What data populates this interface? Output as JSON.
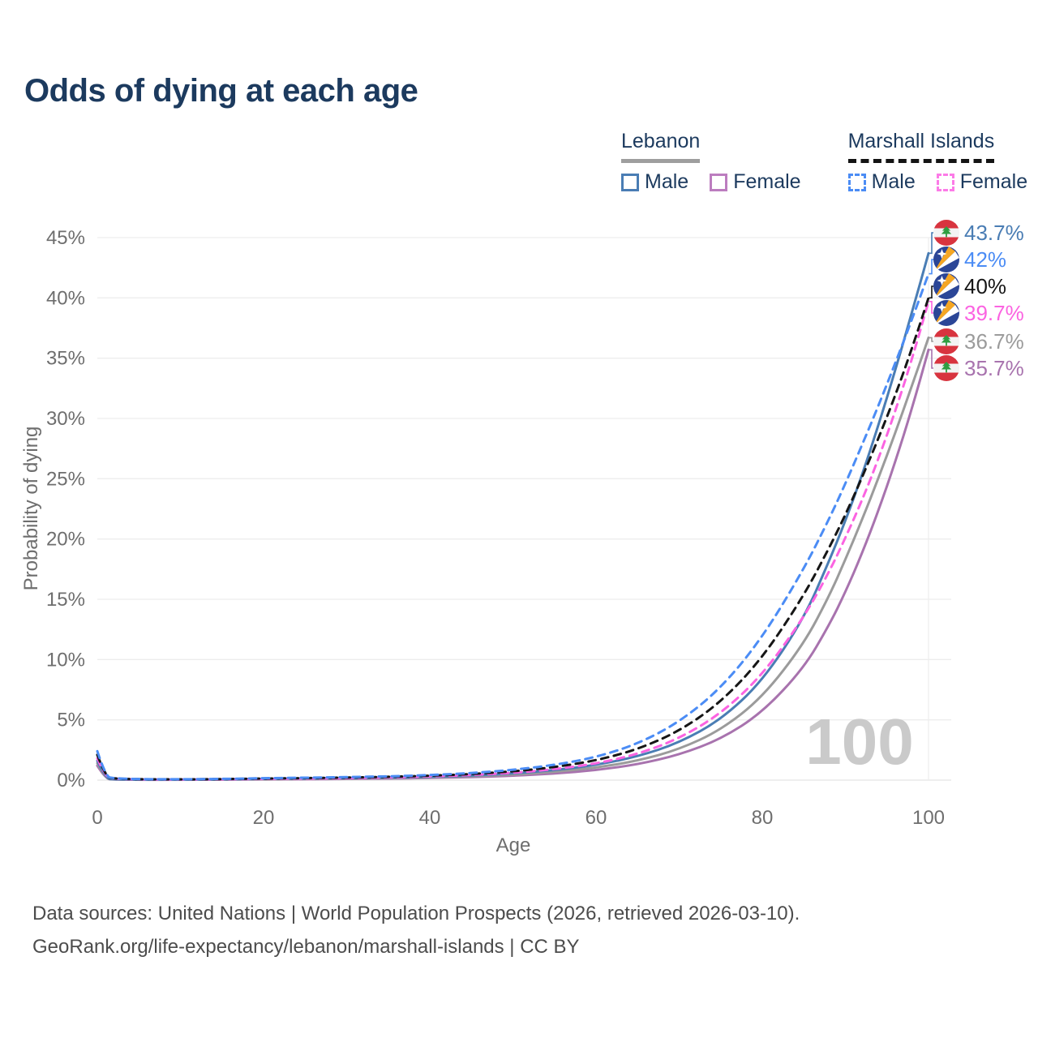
{
  "chart_data": {
    "type": "line",
    "title": "Odds of dying at each age",
    "xlabel": "Age",
    "ylabel": "Probability of dying",
    "xlim": [
      0,
      100
    ],
    "ylim": [
      0,
      45
    ],
    "x_ticks": [
      0,
      20,
      40,
      60,
      80,
      100
    ],
    "y_ticks": [
      0,
      5,
      10,
      15,
      20,
      25,
      30,
      35,
      40,
      45
    ],
    "y_tick_suffix": "%",
    "grid": "horizontal",
    "watermark": "100",
    "ages": [
      0,
      1,
      2,
      5,
      10,
      15,
      20,
      25,
      30,
      35,
      40,
      45,
      50,
      55,
      60,
      65,
      70,
      75,
      80,
      85,
      88,
      90,
      92,
      94,
      96,
      98,
      100
    ],
    "series": [
      {
        "id": "lb_male",
        "country": "Lebanon",
        "name": "Male",
        "style": "solid",
        "color": "#4a7db4",
        "flag": "lebanon",
        "end_label": "43.7%",
        "end_value": 43.7,
        "values": [
          1.6,
          0.12,
          0.07,
          0.04,
          0.04,
          0.06,
          0.1,
          0.13,
          0.16,
          0.2,
          0.27,
          0.38,
          0.55,
          0.82,
          1.25,
          1.95,
          3.1,
          5.0,
          8.2,
          13.4,
          18.1,
          21.5,
          25.3,
          29.5,
          34.0,
          38.8,
          43.7
        ]
      },
      {
        "id": "mi_male",
        "country": "Marshall Islands",
        "name": "Male",
        "style": "dashed",
        "color": "#4b8cf5",
        "flag": "marshall-islands",
        "end_label": "42%",
        "end_value": 42,
        "values": [
          2.4,
          0.3,
          0.15,
          0.08,
          0.07,
          0.1,
          0.16,
          0.2,
          0.25,
          0.31,
          0.42,
          0.58,
          0.85,
          1.25,
          1.9,
          3.0,
          4.8,
          7.6,
          11.8,
          17.5,
          21.6,
          24.6,
          27.8,
          31.1,
          34.6,
          38.2,
          42.0
        ]
      },
      {
        "id": "mi_all",
        "country": "Marshall Islands",
        "name": "All",
        "style": "dashed",
        "color": "#161616",
        "flag": "marshall-islands",
        "end_label": "40%",
        "end_value": 40,
        "values": [
          2.1,
          0.27,
          0.13,
          0.07,
          0.06,
          0.09,
          0.13,
          0.17,
          0.21,
          0.27,
          0.36,
          0.5,
          0.72,
          1.07,
          1.62,
          2.55,
          4.05,
          6.45,
          10.1,
          15.3,
          19.2,
          22.0,
          25.1,
          28.4,
          31.9,
          35.8,
          40.0
        ]
      },
      {
        "id": "mi_female",
        "country": "Marshall Islands",
        "name": "Female",
        "style": "dashed",
        "color": "#fb63e1",
        "flag": "marshall-islands",
        "end_label": "39.7%",
        "end_value": 39.7,
        "values": [
          1.8,
          0.24,
          0.12,
          0.06,
          0.05,
          0.07,
          0.1,
          0.13,
          0.17,
          0.22,
          0.3,
          0.42,
          0.6,
          0.9,
          1.36,
          2.15,
          3.45,
          5.5,
          8.7,
          13.5,
          17.2,
          20.1,
          23.2,
          26.7,
          30.6,
          34.9,
          39.7
        ]
      },
      {
        "id": "lb_all",
        "country": "Lebanon",
        "name": "All",
        "style": "solid",
        "color": "#9b9b9b",
        "flag": "lebanon",
        "end_label": "36.7%",
        "end_value": 36.7,
        "values": [
          1.4,
          0.11,
          0.06,
          0.04,
          0.03,
          0.05,
          0.08,
          0.1,
          0.13,
          0.17,
          0.23,
          0.32,
          0.46,
          0.68,
          1.03,
          1.6,
          2.55,
          4.15,
          6.85,
          11.3,
          15.2,
          18.3,
          21.6,
          25.1,
          28.8,
          32.7,
          36.7
        ]
      },
      {
        "id": "lb_female",
        "country": "Lebanon",
        "name": "Female",
        "style": "solid",
        "color": "#a873ae",
        "flag": "lebanon",
        "end_label": "35.7%",
        "end_value": 35.7,
        "values": [
          1.2,
          0.1,
          0.05,
          0.03,
          0.03,
          0.04,
          0.06,
          0.08,
          0.1,
          0.13,
          0.18,
          0.25,
          0.36,
          0.54,
          0.82,
          1.3,
          2.1,
          3.4,
          5.6,
          9.3,
          12.8,
          15.6,
          18.8,
          22.4,
          26.4,
          30.8,
          35.7
        ]
      }
    ],
    "colors": {
      "title": "#1c3a5e",
      "axis_text": "#6e6e6e",
      "gridline": "#ededed",
      "baseline": "#e3e3e3",
      "watermark": "#cacaca",
      "flag_lebanon_red": "#d8343f",
      "flag_lebanon_green": "#2f9e41",
      "flag_mi_blue": "#2b4697",
      "flag_mi_orange": "#f5a623"
    }
  },
  "legend": {
    "groups": [
      {
        "label": "Lebanon",
        "underline": "solid",
        "underline_color": "#9e9e9e",
        "items": [
          {
            "label": "Male",
            "color": "#4a7db4",
            "style": "solid"
          },
          {
            "label": "Female",
            "color": "#bc7dbf",
            "style": "solid"
          }
        ]
      },
      {
        "label": "Marshall Islands",
        "underline": "dashed",
        "underline_color": "#141414",
        "items": [
          {
            "label": "Male",
            "color": "#4b8cf5",
            "style": "dashed"
          },
          {
            "label": "Female",
            "color": "#fc7be7",
            "style": "dashed"
          }
        ]
      }
    ]
  },
  "footer": {
    "line1": "Data sources: United Nations | World Population Prospects (2026, retrieved 2026-03-10).",
    "line2": "GeoRank.org/life-expectancy/lebanon/marshall-islands | CC BY"
  }
}
